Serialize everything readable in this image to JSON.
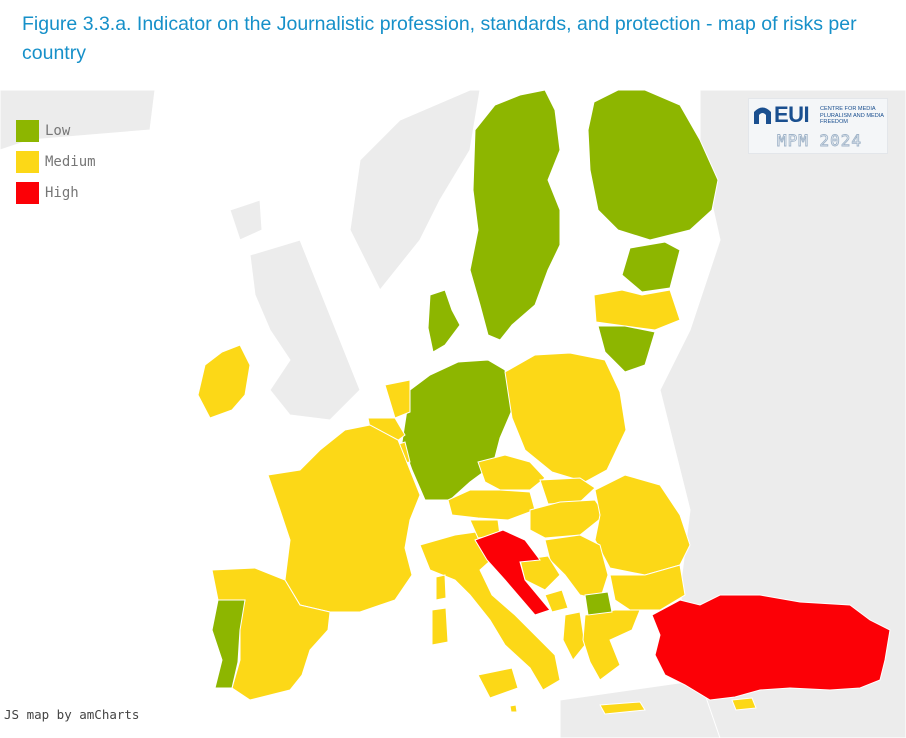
{
  "figure": {
    "title": "Figure 3.3.a. Indicator on the Journalistic profession, standards, and protection - map of risks per country"
  },
  "legend": {
    "items": [
      {
        "label": "Low",
        "color": "#8db600"
      },
      {
        "label": "Medium",
        "color": "#fcd817"
      },
      {
        "label": "High",
        "color": "#fc0006"
      }
    ]
  },
  "credit": "JS map by amCharts",
  "logo": {
    "name": "EUI",
    "subtitle": "CENTRE FOR MEDIA PLURALISM AND MEDIA FREEDOM",
    "edition": "MPM 2024"
  },
  "colors": {
    "sea": "#ffffff",
    "other_land": "#ececec",
    "border": "#ffffff"
  },
  "chart_data": {
    "type": "choropleth",
    "region": "Europe",
    "categories": [
      "Low",
      "Medium",
      "High"
    ],
    "countries": [
      {
        "name": "Sweden",
        "risk": "Low"
      },
      {
        "name": "Finland",
        "risk": "Low"
      },
      {
        "name": "Estonia",
        "risk": "Low"
      },
      {
        "name": "Lithuania",
        "risk": "Low"
      },
      {
        "name": "Denmark",
        "risk": "Low"
      },
      {
        "name": "Germany",
        "risk": "Low"
      },
      {
        "name": "Portugal",
        "risk": "Low"
      },
      {
        "name": "North Macedonia",
        "risk": "Low"
      },
      {
        "name": "Latvia",
        "risk": "Medium"
      },
      {
        "name": "Poland",
        "risk": "Medium"
      },
      {
        "name": "Ireland",
        "risk": "Medium"
      },
      {
        "name": "Netherlands",
        "risk": "Medium"
      },
      {
        "name": "Belgium",
        "risk": "Medium"
      },
      {
        "name": "Luxembourg",
        "risk": "Medium"
      },
      {
        "name": "France",
        "risk": "Medium"
      },
      {
        "name": "Spain",
        "risk": "Medium"
      },
      {
        "name": "Italy",
        "risk": "Medium"
      },
      {
        "name": "Malta",
        "risk": "Medium"
      },
      {
        "name": "Czechia",
        "risk": "Medium"
      },
      {
        "name": "Slovakia",
        "risk": "Medium"
      },
      {
        "name": "Austria",
        "risk": "Medium"
      },
      {
        "name": "Slovenia",
        "risk": "Medium"
      },
      {
        "name": "Hungary",
        "risk": "Medium"
      },
      {
        "name": "Romania",
        "risk": "Medium"
      },
      {
        "name": "Bulgaria",
        "risk": "Medium"
      },
      {
        "name": "Serbia",
        "risk": "Medium"
      },
      {
        "name": "Bosnia and Herzegovina",
        "risk": "Medium"
      },
      {
        "name": "Montenegro",
        "risk": "Medium"
      },
      {
        "name": "Albania",
        "risk": "Medium"
      },
      {
        "name": "Greece",
        "risk": "Medium"
      },
      {
        "name": "Cyprus",
        "risk": "Medium"
      },
      {
        "name": "Croatia",
        "risk": "High"
      },
      {
        "name": "Turkey",
        "risk": "High"
      }
    ]
  }
}
